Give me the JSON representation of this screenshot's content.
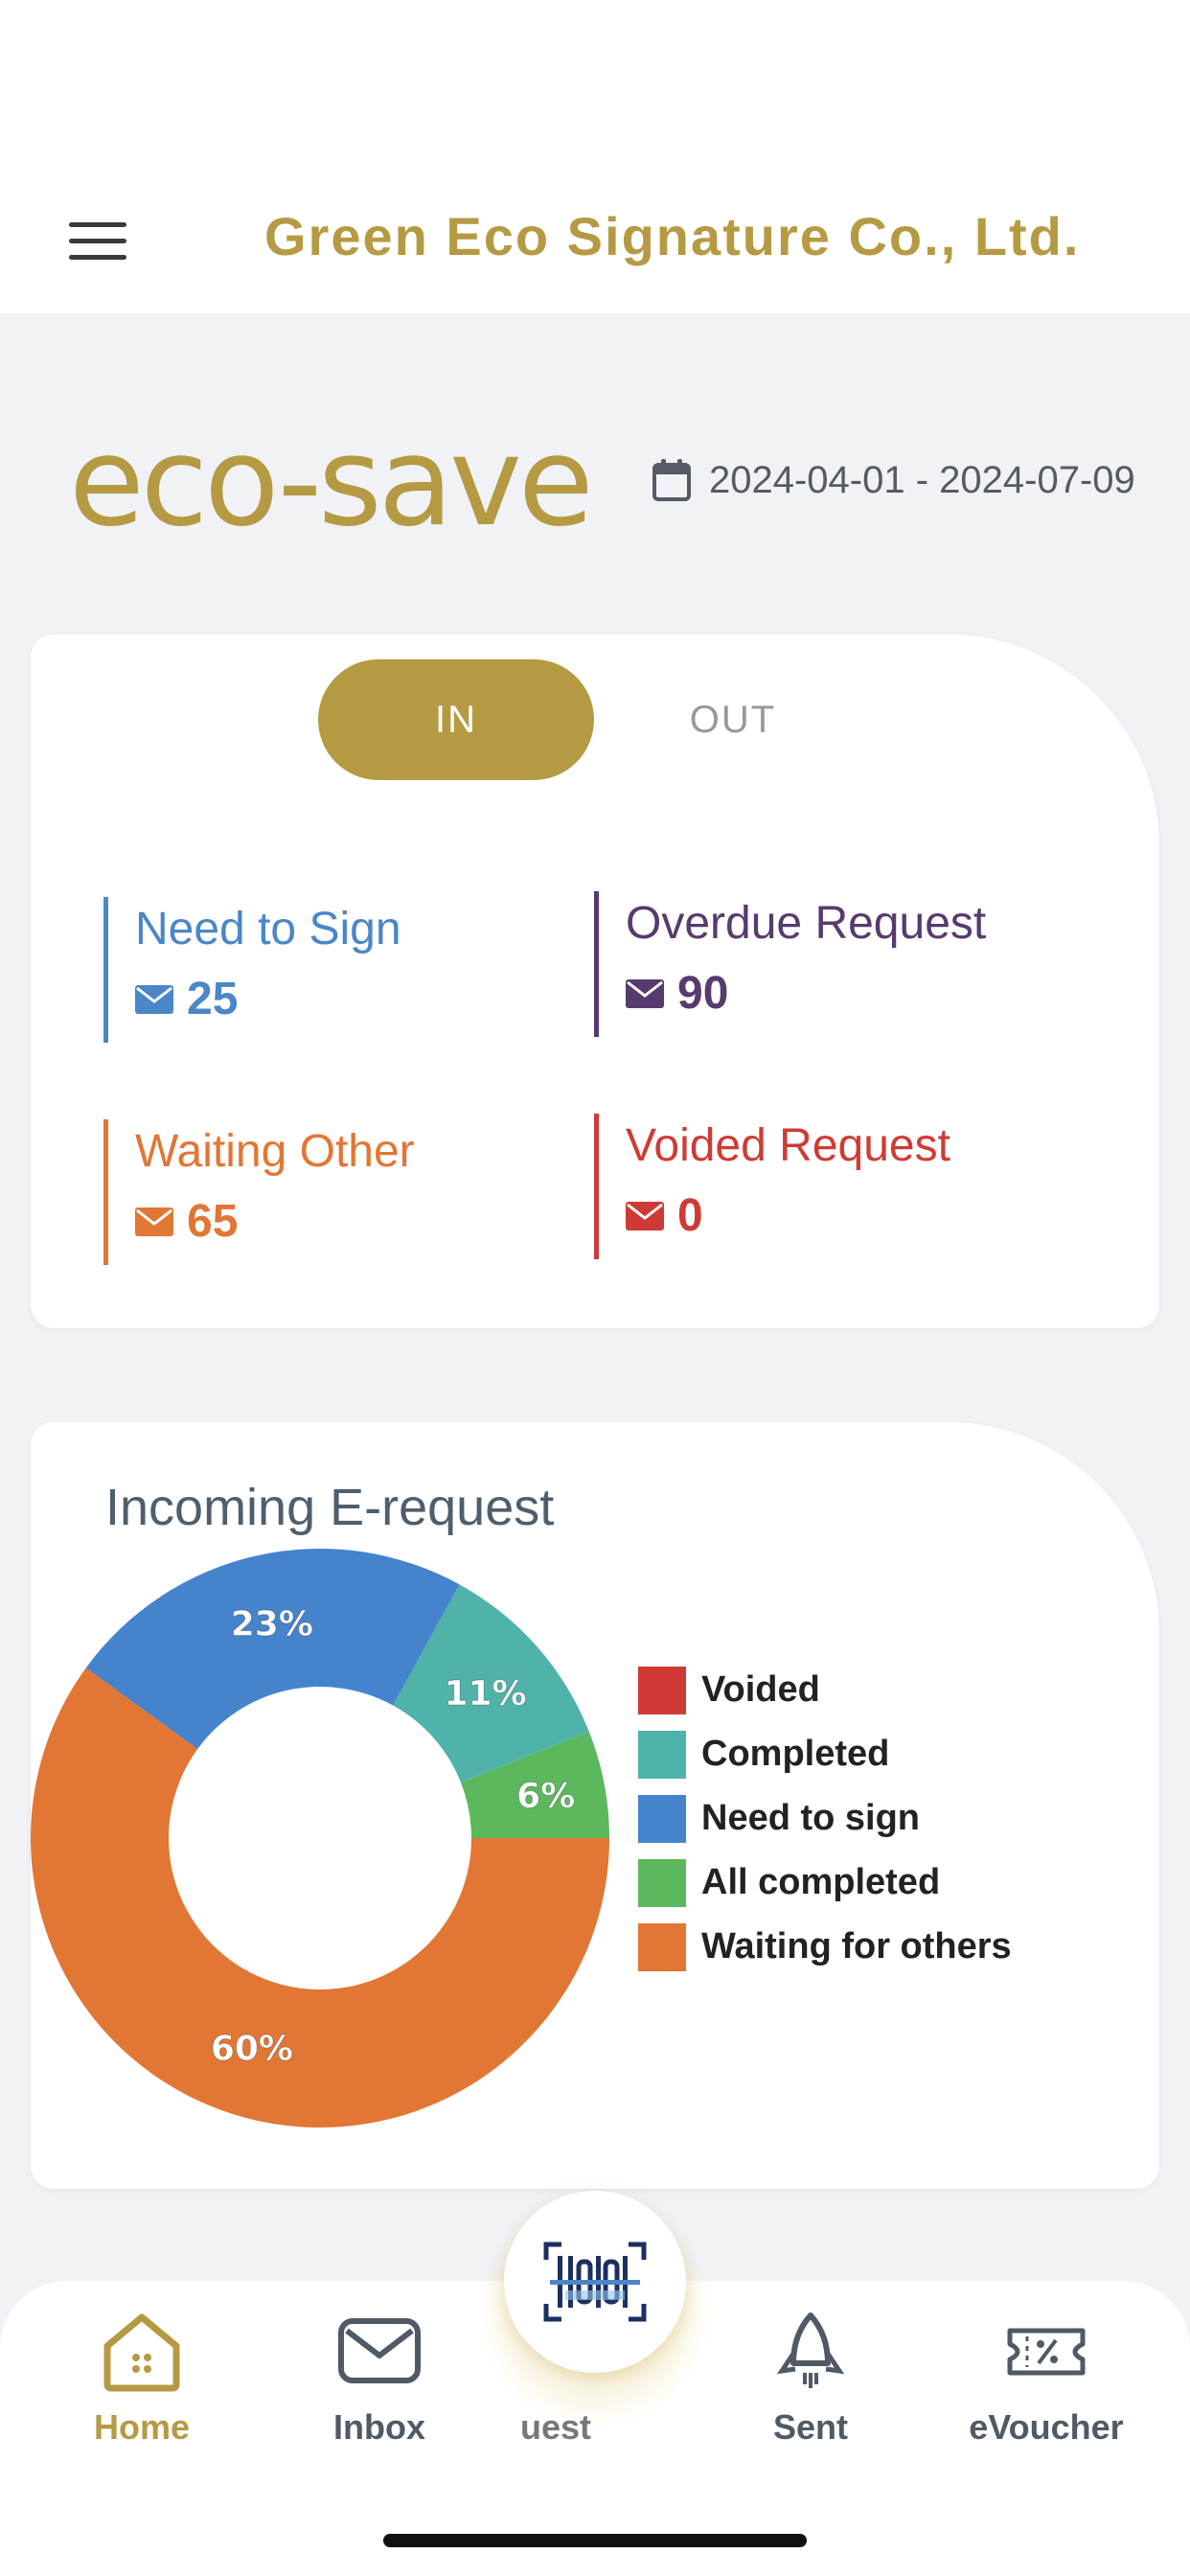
{
  "header": {
    "company": "Green Eco Signature Co., Ltd."
  },
  "brand": {
    "logo": "eco-save"
  },
  "date_range": "2024-04-01 - 2024-07-09",
  "toggle": {
    "in_label": "IN",
    "out_label": "OUT",
    "selected": "IN"
  },
  "stats": {
    "need_to_sign": {
      "label": "Need to Sign",
      "count": "25"
    },
    "overdue": {
      "label": "Overdue Request",
      "count": "90"
    },
    "waiting": {
      "label": "Waiting Other",
      "count": "65"
    },
    "voided": {
      "label": "Voided Request",
      "count": "0"
    }
  },
  "chart": {
    "title": "Incoming E-request"
  },
  "chart_data": {
    "type": "pie",
    "title": "Incoming E-request",
    "series": [
      {
        "name": "Voided",
        "value": 0,
        "label": "",
        "color": "#cf3b34"
      },
      {
        "name": "Completed",
        "value": 11,
        "label": "11%",
        "color": "#4fb3a9"
      },
      {
        "name": "Need to sign",
        "value": 23,
        "label": "23%",
        "color": "#4583cd"
      },
      {
        "name": "All completed",
        "value": 6,
        "label": "6%",
        "color": "#5cb85c"
      },
      {
        "name": "Waiting for others",
        "value": 60,
        "label": "60%",
        "color": "#e27635"
      }
    ],
    "legend_position": "right"
  },
  "nav": {
    "home": "Home",
    "inbox": "Inbox",
    "request": "uest",
    "sent": "Sent",
    "voucher": "eVoucher"
  },
  "colors": {
    "brand": "#b69a43",
    "blue": "#4a86c8",
    "purple": "#573a6e",
    "orange": "#e27635",
    "red": "#cf3b34"
  }
}
